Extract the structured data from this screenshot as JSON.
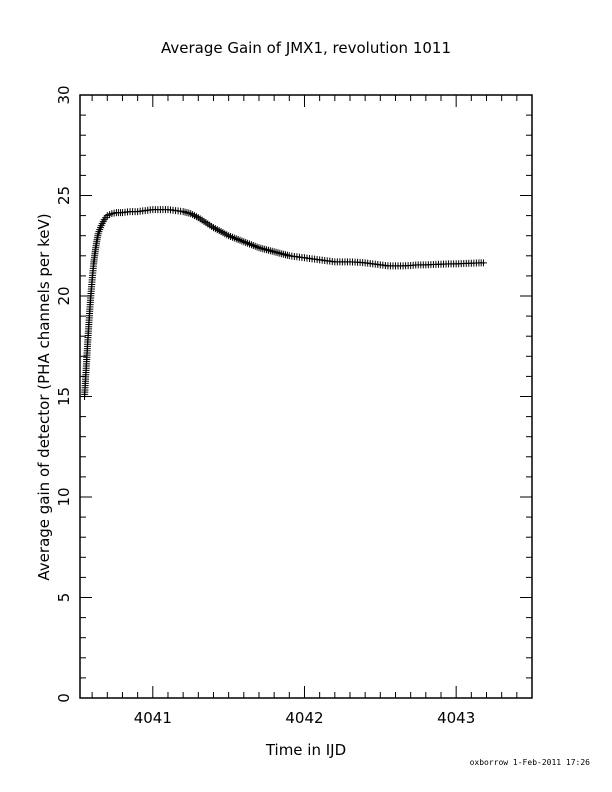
{
  "chart_data": {
    "type": "scatter",
    "title": "Average Gain of JMX1, revolution 1011",
    "xlabel": "Time in IJD",
    "ylabel": "Average gain of detector (PHA channels per keV)",
    "xlim": [
      4040.52,
      4043.5
    ],
    "ylim": [
      0,
      30
    ],
    "x_ticks": [
      4041,
      4042,
      4043
    ],
    "x_tick_labels": [
      "4041",
      "4042",
      "4043"
    ],
    "y_ticks": [
      0,
      5,
      10,
      15,
      20,
      25,
      30
    ],
    "y_tick_labels": [
      "0",
      "5",
      "10",
      "15",
      "20",
      "25",
      "30"
    ],
    "marker": "plus",
    "grid": false,
    "series": [
      {
        "x": [
          4040.55,
          4040.56,
          4040.57,
          4040.58,
          4040.59,
          4040.6,
          4040.61,
          4040.62,
          4040.63,
          4040.64,
          4040.66,
          4040.68,
          4040.7,
          4040.73,
          4040.76,
          4040.8,
          4040.85,
          4040.9,
          4040.95,
          4041.0,
          4041.05,
          4041.1,
          4041.15,
          4041.2,
          4041.25,
          4041.3,
          4041.35,
          4041.4,
          4041.45,
          4041.5,
          4041.55,
          4041.6,
          4041.65,
          4041.7,
          4041.75,
          4041.8,
          4041.85,
          4041.9,
          4041.95,
          4042.0,
          4042.05,
          4042.1,
          4042.15,
          4042.2,
          4042.25,
          4042.3,
          4042.35,
          4042.4,
          4042.45,
          4042.5,
          4042.55,
          4042.6,
          4042.65,
          4042.7,
          4042.75,
          4042.8,
          4042.85,
          4042.9,
          4042.95,
          4043.0,
          4043.05,
          4043.1,
          4043.15,
          4043.18
        ],
        "y": [
          15.0,
          16.3,
          17.6,
          18.8,
          19.9,
          20.8,
          21.6,
          22.2,
          22.7,
          23.1,
          23.5,
          23.8,
          24.0,
          24.1,
          24.15,
          24.15,
          24.2,
          24.2,
          24.25,
          24.3,
          24.3,
          24.3,
          24.25,
          24.2,
          24.1,
          23.9,
          23.65,
          23.4,
          23.2,
          23.0,
          22.85,
          22.7,
          22.55,
          22.4,
          22.3,
          22.2,
          22.1,
          22.0,
          21.95,
          21.9,
          21.85,
          21.8,
          21.75,
          21.7,
          21.7,
          21.7,
          21.68,
          21.65,
          21.6,
          21.55,
          21.5,
          21.5,
          21.5,
          21.52,
          21.55,
          21.55,
          21.57,
          21.58,
          21.6,
          21.6,
          21.62,
          21.63,
          21.65,
          21.65
        ]
      }
    ]
  },
  "footer": {
    "stamp": "oxborrow   1-Feb-2011 17:26"
  }
}
